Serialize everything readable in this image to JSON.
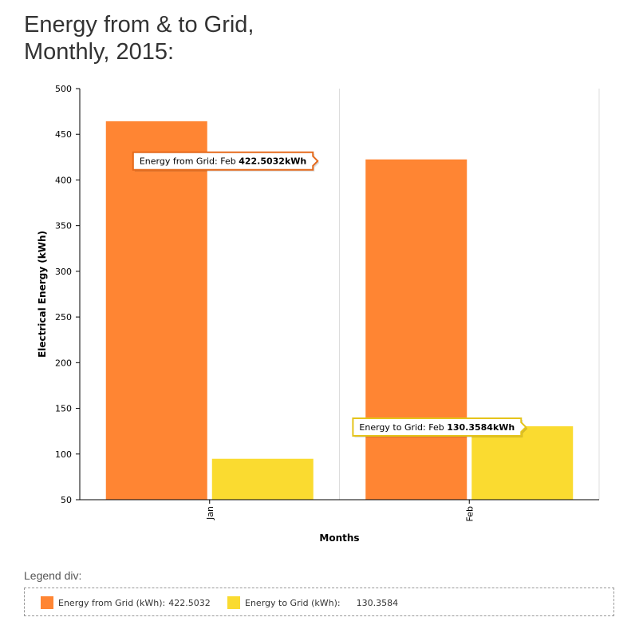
{
  "page": {
    "title_line1": "Energy from & to Grid,",
    "title_line2": "Monthly, 2015:"
  },
  "chart_data": {
    "type": "bar",
    "categories": [
      "Jan",
      "Feb"
    ],
    "series": [
      {
        "name": "Energy from Grid (kWh)",
        "color": "#FF8533",
        "values": [
          464.3,
          422.5032
        ]
      },
      {
        "name": "Energy to Grid (kWh)",
        "color": "#FADB30",
        "values": [
          94.8,
          130.3584
        ]
      }
    ],
    "xlabel": "Months",
    "ylabel": "Electrical Energy (kWh)",
    "ylim": [
      50,
      500
    ],
    "yticks": [
      "50",
      "100",
      "150",
      "200",
      "250",
      "300",
      "350",
      "400",
      "450",
      "500"
    ],
    "grid": true,
    "tooltips": [
      {
        "series": 0,
        "category": 1,
        "prefix": "Energy from Grid: Feb ",
        "value": "422.5032kWh",
        "border": "#E56A1C"
      },
      {
        "series": 1,
        "category": 1,
        "prefix": "Energy to Grid: Feb ",
        "value": "130.3584kWh",
        "border": "#E5C41C"
      }
    ]
  },
  "legend": {
    "heading": "Legend div:",
    "items": [
      {
        "label": "Energy from Grid (kWh):",
        "value": "422.5032",
        "color": "#FF8533"
      },
      {
        "label": "Energy to Grid (kWh):",
        "value": "130.3584",
        "color": "#FADB30"
      }
    ]
  }
}
